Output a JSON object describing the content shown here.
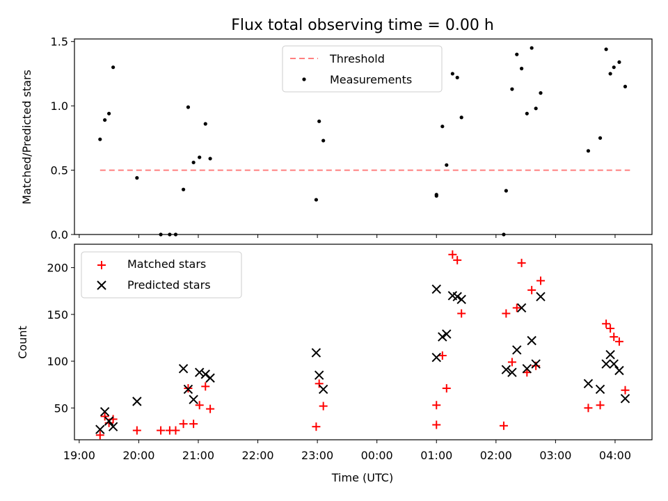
{
  "figure_title": "Flux total observing time = 0.00 h",
  "chart_data": [
    {
      "type": "scatter",
      "panel": "top",
      "ylabel": "Matched/Predicted stars",
      "xlabel": "",
      "ylim": [
        0,
        1.52
      ],
      "yticks": [
        "0.0",
        "0.5",
        "1.0",
        "1.5"
      ],
      "ytick_values": [
        0,
        0.5,
        1.0,
        1.5
      ],
      "legend_position": "upper-center",
      "threshold": {
        "name": "Threshold",
        "value": 0.5,
        "x_start": -4.65,
        "x_end": 4.25,
        "color": "#ff7f7f",
        "style": "dashed"
      },
      "series": [
        {
          "name": "Measurements",
          "color": "#000000",
          "marker": "dot",
          "points": [
            [
              -4.65,
              0.74
            ],
            [
              -4.57,
              0.89
            ],
            [
              -4.5,
              0.94
            ],
            [
              -4.43,
              1.3
            ],
            [
              -4.03,
              0.44
            ],
            [
              -3.63,
              0.0
            ],
            [
              -3.48,
              0.0
            ],
            [
              -3.38,
              0.0
            ],
            [
              -3.25,
              0.35
            ],
            [
              -3.17,
              0.99
            ],
            [
              -3.08,
              0.56
            ],
            [
              -2.98,
              0.6
            ],
            [
              -2.88,
              0.86
            ],
            [
              -2.8,
              0.59
            ],
            [
              -1.02,
              0.27
            ],
            [
              -0.97,
              0.88
            ],
            [
              -0.9,
              0.73
            ],
            [
              1.0,
              0.3
            ],
            [
              1.0,
              0.31
            ],
            [
              1.1,
              0.84
            ],
            [
              1.17,
              0.54
            ],
            [
              1.27,
              1.25
            ],
            [
              1.35,
              1.22
            ],
            [
              1.42,
              0.91
            ],
            [
              2.17,
              0.34
            ],
            [
              2.13,
              0.0
            ],
            [
              2.27,
              1.13
            ],
            [
              2.35,
              1.4
            ],
            [
              2.43,
              1.29
            ],
            [
              2.52,
              0.94
            ],
            [
              2.6,
              1.45
            ],
            [
              2.67,
              0.98
            ],
            [
              2.75,
              1.1
            ],
            [
              3.55,
              0.65
            ],
            [
              3.75,
              0.75
            ],
            [
              3.85,
              1.44
            ],
            [
              3.92,
              1.25
            ],
            [
              3.98,
              1.3
            ],
            [
              4.07,
              1.34
            ],
            [
              4.17,
              1.15
            ]
          ]
        }
      ]
    },
    {
      "type": "scatter",
      "panel": "bottom",
      "xlabel": "Time (UTC)",
      "ylabel": "Count",
      "ylim": [
        16,
        225
      ],
      "yticks": [
        "50",
        "100",
        "150",
        "200"
      ],
      "ytick_values": [
        50,
        100,
        150,
        200
      ],
      "xlim": [
        -5.08,
        4.62
      ],
      "x_categories_hours": [
        -5,
        -4,
        -3,
        -2,
        -1,
        0,
        1,
        2,
        3,
        4
      ],
      "xticks": [
        "19:00",
        "20:00",
        "21:00",
        "22:00",
        "23:00",
        "00:00",
        "01:00",
        "02:00",
        "03:00",
        "04:00"
      ],
      "legend_position": "upper-left",
      "series": [
        {
          "name": "Matched stars",
          "color": "#ff0000",
          "marker": "plus",
          "points": [
            [
              -4.65,
              21
            ],
            [
              -4.57,
              41
            ],
            [
              -4.5,
              34
            ],
            [
              -4.43,
              38
            ],
            [
              -4.03,
              26
            ],
            [
              -3.63,
              26
            ],
            [
              -3.48,
              26
            ],
            [
              -3.38,
              26
            ],
            [
              -3.25,
              33
            ],
            [
              -3.17,
              71
            ],
            [
              -3.08,
              33
            ],
            [
              -2.98,
              53
            ],
            [
              -2.88,
              73
            ],
            [
              -2.8,
              49
            ],
            [
              -1.02,
              30
            ],
            [
              -0.97,
              76
            ],
            [
              -0.9,
              52
            ],
            [
              1.0,
              32
            ],
            [
              1.0,
              53
            ],
            [
              1.1,
              106
            ],
            [
              1.17,
              71
            ],
            [
              1.27,
              214
            ],
            [
              1.35,
              208
            ],
            [
              1.42,
              151
            ],
            [
              2.13,
              31
            ],
            [
              2.17,
              151
            ],
            [
              2.27,
              99
            ],
            [
              2.35,
              157
            ],
            [
              2.43,
              205
            ],
            [
              2.52,
              88
            ],
            [
              2.6,
              176
            ],
            [
              2.67,
              95
            ],
            [
              2.75,
              186
            ],
            [
              3.55,
              50
            ],
            [
              3.75,
              53
            ],
            [
              3.85,
              140
            ],
            [
              3.92,
              135
            ],
            [
              3.98,
              126
            ],
            [
              4.07,
              121
            ],
            [
              4.17,
              69
            ]
          ]
        },
        {
          "name": "Predicted stars",
          "color": "#000000",
          "marker": "x",
          "points": [
            [
              -4.65,
              27
            ],
            [
              -4.57,
              46
            ],
            [
              -4.5,
              36
            ],
            [
              -4.43,
              30
            ],
            [
              -4.03,
              57
            ],
            [
              -3.25,
              92
            ],
            [
              -3.17,
              70
            ],
            [
              -3.08,
              59
            ],
            [
              -2.98,
              88
            ],
            [
              -2.88,
              86
            ],
            [
              -2.8,
              82
            ],
            [
              -1.02,
              109
            ],
            [
              -0.97,
              85
            ],
            [
              -0.9,
              70
            ],
            [
              1.0,
              177
            ],
            [
              1.0,
              104
            ],
            [
              1.1,
              126
            ],
            [
              1.17,
              129
            ],
            [
              1.27,
              170
            ],
            [
              1.35,
              169
            ],
            [
              1.42,
              166
            ],
            [
              2.17,
              91
            ],
            [
              2.27,
              88
            ],
            [
              2.35,
              112
            ],
            [
              2.43,
              157
            ],
            [
              2.52,
              92
            ],
            [
              2.6,
              122
            ],
            [
              2.67,
              97
            ],
            [
              2.75,
              169
            ],
            [
              3.55,
              76
            ],
            [
              3.75,
              70
            ],
            [
              3.85,
              97
            ],
            [
              3.92,
              107
            ],
            [
              3.98,
              97
            ],
            [
              4.07,
              90
            ],
            [
              4.17,
              60
            ]
          ]
        }
      ]
    }
  ]
}
